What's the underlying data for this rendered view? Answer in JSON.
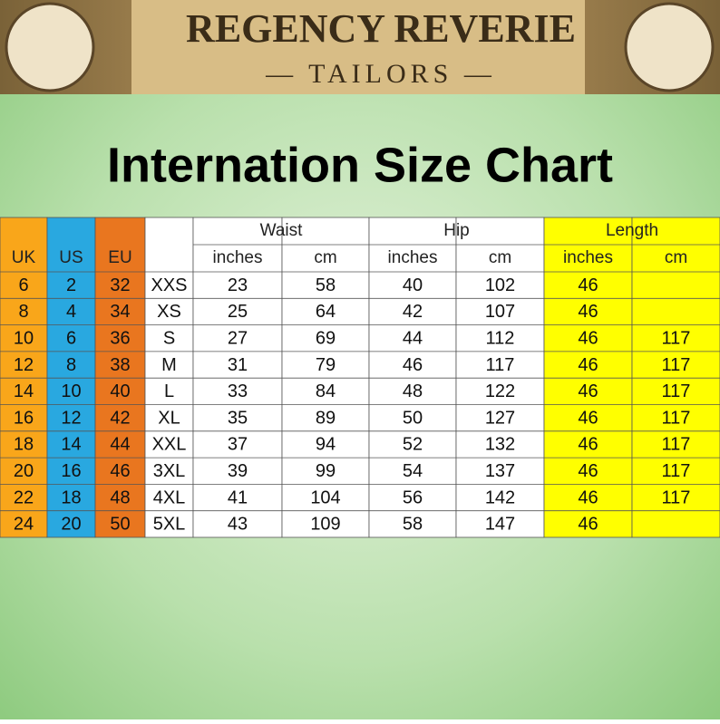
{
  "header": {
    "title": "REGENCY REVERIE",
    "subtitle": "— TAILORS —"
  },
  "heading": "Internation Size Chart",
  "table": {
    "columns": [
      "UK",
      "US",
      "EU"
    ],
    "group_headers": [
      "Waist",
      "Hip",
      "Length"
    ],
    "sub_headers": [
      "inches",
      "cm",
      "inches",
      "cm",
      "inches",
      "cm"
    ],
    "rows": [
      [
        6,
        2,
        32,
        "XXS",
        23,
        58,
        40,
        102,
        46,
        null
      ],
      [
        8,
        4,
        34,
        "XS",
        25,
        64,
        42,
        107,
        46,
        null
      ],
      [
        10,
        6,
        36,
        "S",
        27,
        69,
        44,
        112,
        46,
        117
      ],
      [
        12,
        8,
        38,
        "M",
        31,
        79,
        46,
        117,
        46,
        117
      ],
      [
        14,
        10,
        40,
        "L",
        33,
        84,
        48,
        122,
        46,
        117
      ],
      [
        16,
        12,
        42,
        "XL",
        35,
        89,
        50,
        127,
        46,
        117
      ],
      [
        18,
        14,
        44,
        "XXL",
        37,
        94,
        52,
        132,
        46,
        117
      ],
      [
        20,
        16,
        46,
        "3XL",
        39,
        99,
        54,
        137,
        46,
        117
      ],
      [
        22,
        18,
        48,
        "4XL",
        41,
        104,
        56,
        142,
        46,
        117
      ],
      [
        24,
        20,
        50,
        "5XL",
        43,
        109,
        58,
        147,
        46,
        null
      ]
    ]
  }
}
